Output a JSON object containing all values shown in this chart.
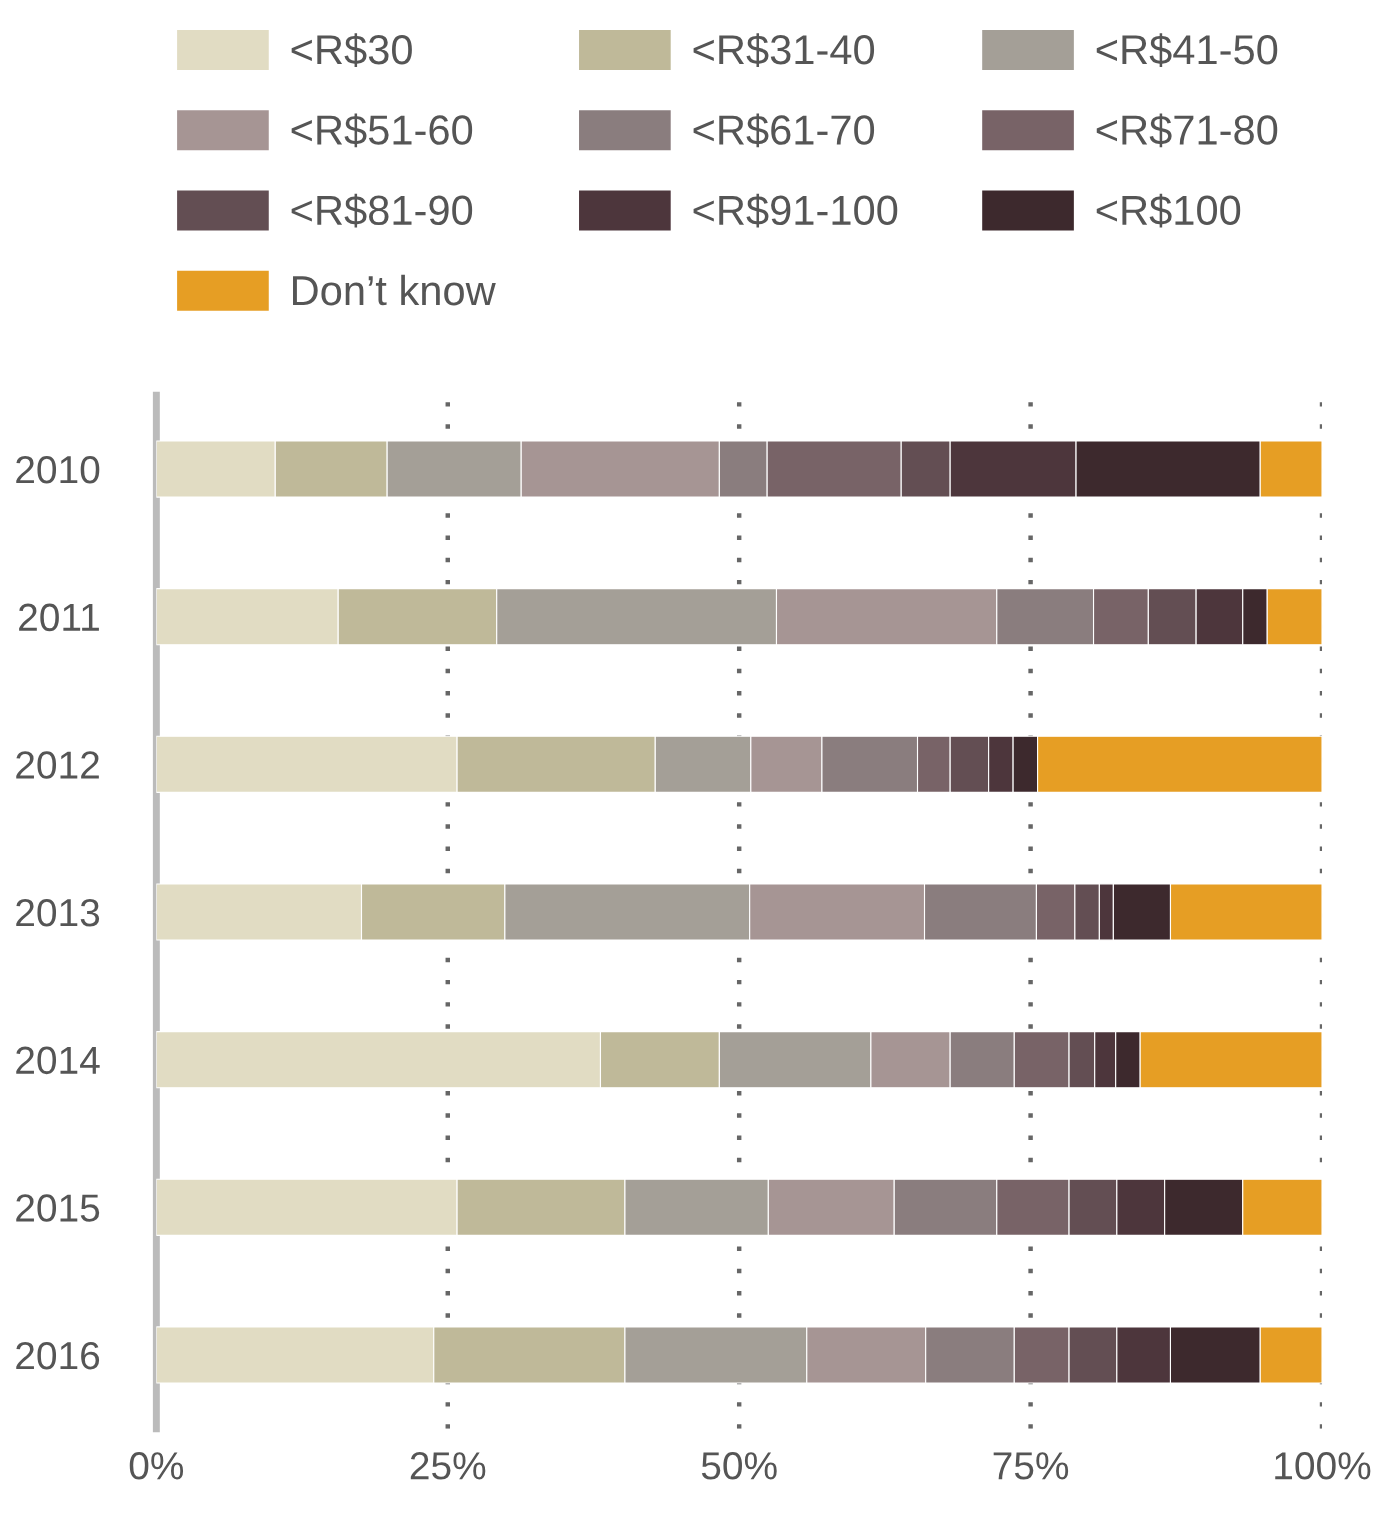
{
  "chart_data": {
    "type": "bar",
    "orientation": "horizontal",
    "stacked": true,
    "categories": [
      "2010",
      "2011",
      "2012",
      "2013",
      "2014",
      "2015",
      "2016"
    ],
    "series": [
      {
        "name": "<R$30",
        "color": "#e1dcc3",
        "values": [
          10.2,
          15.6,
          25.8,
          17.6,
          38.1,
          25.8,
          23.8
        ]
      },
      {
        "name": "<R$31-40",
        "color": "#bfb999",
        "values": [
          9.6,
          13.6,
          17.0,
          12.3,
          10.2,
          14.4,
          16.4
        ]
      },
      {
        "name": "<R$41-50",
        "color": "#a49f97",
        "values": [
          11.5,
          24.0,
          8.2,
          21.0,
          13.0,
          12.3,
          15.6
        ]
      },
      {
        "name": "<R$51-60",
        "color": "#a69594",
        "values": [
          17.0,
          18.9,
          6.1,
          15.0,
          6.8,
          10.8,
          10.2
        ]
      },
      {
        "name": "<R$61-70",
        "color": "#8a7d7e",
        "values": [
          4.1,
          8.3,
          8.2,
          9.6,
          5.5,
          8.8,
          7.6
        ]
      },
      {
        "name": "<R$71-80",
        "color": "#786367",
        "values": [
          11.5,
          4.7,
          2.8,
          3.3,
          4.7,
          6.2,
          4.7
        ]
      },
      {
        "name": "<R$81-90",
        "color": "#634e53",
        "values": [
          4.2,
          4.1,
          3.3,
          2.1,
          2.2,
          4.1,
          4.1
        ]
      },
      {
        "name": "<R$91-100",
        "color": "#4d363c",
        "values": [
          10.8,
          4.0,
          2.1,
          1.2,
          1.8,
          4.1,
          4.6
        ]
      },
      {
        "name": "<R$100",
        "color": "#3d292d",
        "values": [
          15.8,
          2.1,
          2.1,
          4.9,
          2.1,
          6.7,
          7.7
        ]
      },
      {
        "name": "Don’t know",
        "color": "#e69e24",
        "values": [
          5.3,
          4.7,
          24.4,
          13.0,
          15.6,
          6.8,
          5.3
        ]
      }
    ],
    "xlim": [
      0,
      100
    ],
    "xticks": [
      {
        "value": 0,
        "label": "0%"
      },
      {
        "value": 25,
        "label": "25%"
      },
      {
        "value": 50,
        "label": "50%"
      },
      {
        "value": 75,
        "label": "75%"
      },
      {
        "value": 100,
        "label": "100%"
      }
    ],
    "grid": "x",
    "legend": "top"
  }
}
